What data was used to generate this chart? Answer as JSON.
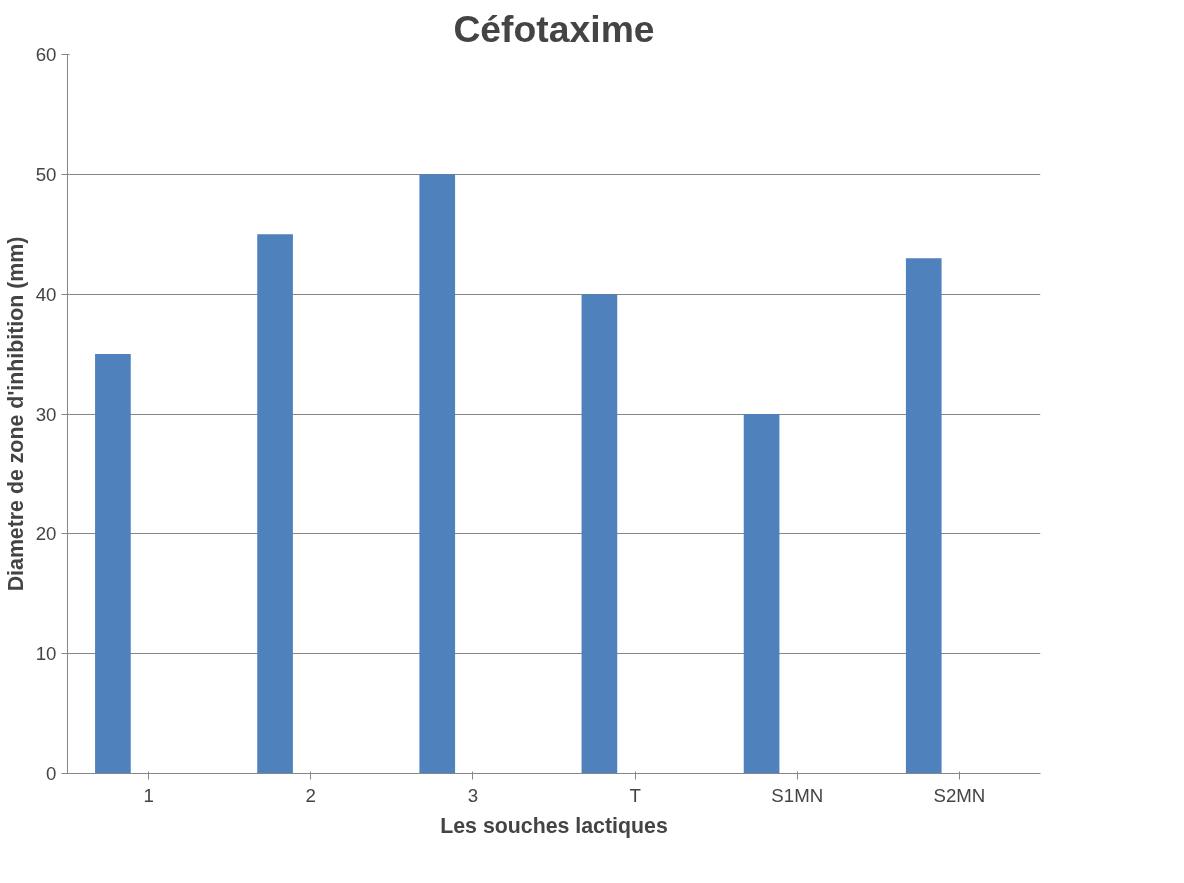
{
  "chart_data": {
    "type": "bar",
    "title": "Céfotaxime",
    "xlabel": "Les souches lactiques",
    "ylabel": "Diametre de zone d'inhibition (mm)",
    "categories": [
      "1",
      "2",
      "3",
      "T",
      "S1MN",
      "S2MN"
    ],
    "values": [
      35,
      45,
      50,
      40,
      30,
      43
    ],
    "color": "#4f81bd",
    "ylim": [
      0,
      60
    ],
    "yticks": [
      0,
      10,
      20,
      30,
      40,
      50,
      60
    ],
    "grid": "y"
  }
}
